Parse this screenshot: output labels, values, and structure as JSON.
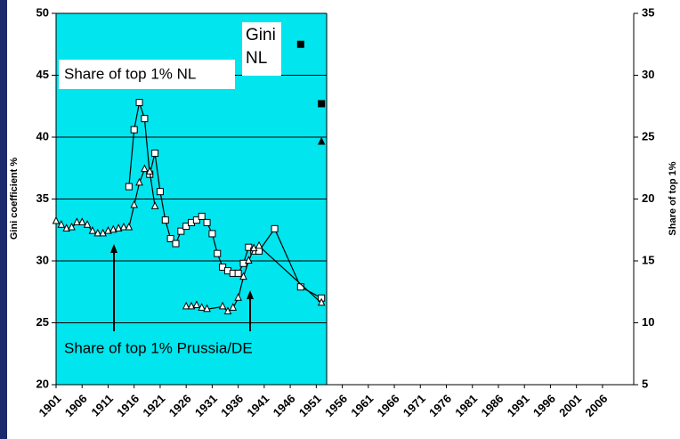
{
  "chart_data": {
    "type": "line",
    "y_label": "Gini coefficient %",
    "y2_label": "Share of top 1%",
    "xlim": [
      1901,
      2012
    ],
    "xticks": [
      1901,
      1906,
      1911,
      1916,
      1921,
      1926,
      1931,
      1936,
      1941,
      1946,
      1951,
      1956,
      1961,
      1966,
      1971,
      1976,
      1981,
      1986,
      1991,
      1996,
      2001,
      2006
    ],
    "ylim": [
      20,
      50
    ],
    "yticks": [
      20,
      25,
      30,
      35,
      40,
      45,
      50
    ],
    "y2lim": [
      5,
      35
    ],
    "y2ticks": [
      5,
      10,
      15,
      20,
      25,
      30,
      35
    ],
    "shade": {
      "xlim": [
        1901,
        1953
      ],
      "color": "#00e5ee"
    },
    "annotations": [
      "Share of top 1% NL",
      "Gini NL",
      "Share of top 1% Prussia/DE"
    ],
    "series": [
      {
        "color": "#000000",
        "marker": "square-open",
        "axis": "y2",
        "line": true,
        "x": [
          1915,
          1916,
          1917,
          1918,
          1919,
          1920,
          1921,
          1922,
          1923,
          1924,
          1925,
          1926,
          1927,
          1928,
          1929,
          1930,
          1931,
          1932,
          1933,
          1934,
          1935,
          1936,
          1937,
          1938,
          1939,
          1940,
          1943,
          1948,
          1952
        ],
        "values": [
          21.0,
          25.6,
          27.8,
          26.5,
          22.0,
          23.7,
          20.6,
          18.3,
          16.8,
          16.4,
          17.4,
          17.8,
          18.1,
          18.3,
          18.6,
          18.1,
          17.2,
          15.6,
          14.5,
          14.2,
          14.0,
          14.0,
          14.8,
          16.1,
          15.8,
          15.8,
          17.6,
          12.9,
          12.0
        ]
      },
      {
        "color": "#000000",
        "marker": "triangle-open",
        "axis": "y2",
        "line": true,
        "x": [
          1901,
          1902,
          1903,
          1904,
          1905,
          1906,
          1907,
          1908,
          1909,
          1910,
          1911,
          1912,
          1913,
          1914,
          1915,
          1916,
          1917,
          1918,
          1919,
          1920,
          1923,
          1926,
          1927,
          1928,
          1929,
          1930,
          1933,
          1934,
          1935,
          1936,
          1937,
          1938,
          1939,
          1940,
          1952
        ],
        "values": [
          18.2,
          17.9,
          17.6,
          17.7,
          18.1,
          18.1,
          17.9,
          17.4,
          17.2,
          17.2,
          17.4,
          17.5,
          17.6,
          17.7,
          17.7,
          19.5,
          21.3,
          22.4,
          22.2,
          19.4,
          null,
          11.3,
          11.3,
          11.4,
          11.2,
          11.1,
          11.3,
          10.9,
          11.2,
          12.0,
          13.7,
          15.0,
          16.0,
          16.2,
          11.6
        ]
      },
      {
        "color": "#000000",
        "marker": "square",
        "axis": "y",
        "line": false,
        "x": [
          1948,
          1952
        ],
        "values": [
          47.5,
          42.7
        ]
      },
      {
        "color": "#000000",
        "marker": "triangle",
        "axis": "y",
        "line": false,
        "x": [
          1952
        ],
        "values": [
          39.6
        ]
      }
    ]
  }
}
